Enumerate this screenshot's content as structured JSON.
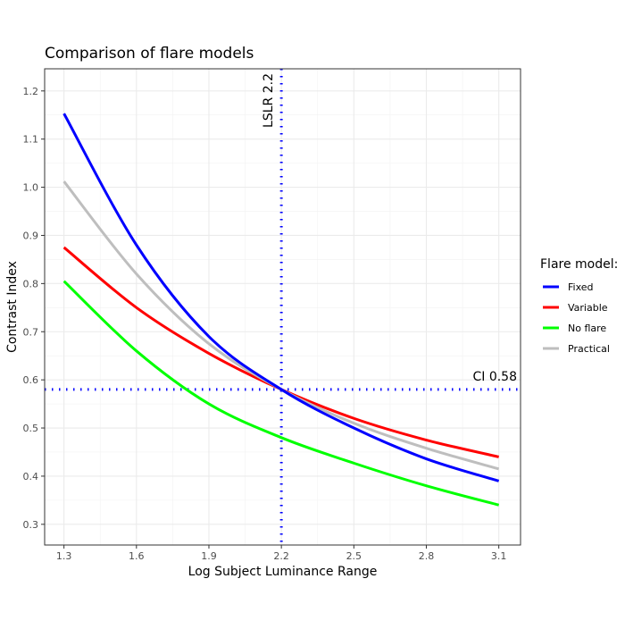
{
  "chart_data": {
    "type": "line",
    "title": "Comparison of flare models",
    "xlabel": "Log Subject Luminance Range",
    "ylabel": "Contrast Index",
    "xlim": [
      1.22,
      3.19
    ],
    "ylim": [
      0.257,
      1.246
    ],
    "xticks": [
      1.3,
      1.6,
      1.9,
      2.2,
      2.5,
      2.8,
      3.1
    ],
    "xtick_labels": [
      "1.3",
      "1.6",
      "1.9",
      "2.2",
      "2.5",
      "2.8",
      "3.1"
    ],
    "yticks": [
      0.3,
      0.4,
      0.5,
      0.6,
      0.7,
      0.8,
      0.9,
      1.0,
      1.1,
      1.2
    ],
    "ytick_labels": [
      "0.3",
      "0.4",
      "0.5",
      "0.6",
      "0.7",
      "0.8",
      "0.9",
      "1.0",
      "1.1",
      "1.2"
    ],
    "grid": true,
    "legend": {
      "title": "Flare model:",
      "placement": "right"
    },
    "x": [
      1.3,
      1.6,
      1.9,
      2.2,
      2.5,
      2.8,
      3.1
    ],
    "series": [
      {
        "name": "Fixed",
        "color": "#0000ff",
        "values": [
          1.153,
          0.88,
          0.69,
          0.58,
          0.5,
          0.436,
          0.39
        ]
      },
      {
        "name": "Variable",
        "color": "#ff0000",
        "values": [
          0.875,
          0.75,
          0.655,
          0.58,
          0.52,
          0.475,
          0.44
        ]
      },
      {
        "name": "No flare",
        "color": "#00ff00",
        "values": [
          0.805,
          0.66,
          0.55,
          0.48,
          0.427,
          0.38,
          0.34
        ]
      },
      {
        "name": "Practical",
        "color": "#bebebe",
        "values": [
          1.012,
          0.82,
          0.675,
          0.58,
          0.51,
          0.458,
          0.415
        ]
      }
    ],
    "reference_lines": [
      {
        "axis": "x",
        "value": 2.2,
        "label": "LSLR 2.2",
        "color": "#0000ff",
        "style": "dotted"
      },
      {
        "axis": "y",
        "value": 0.58,
        "label": "CI 0.58",
        "color": "#0000ff",
        "style": "dotted"
      }
    ]
  }
}
